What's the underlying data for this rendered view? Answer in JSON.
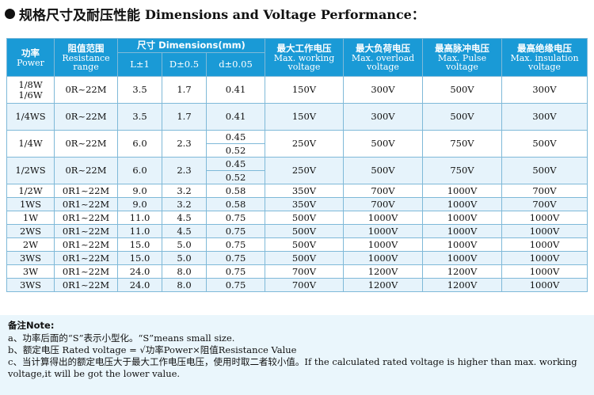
{
  "title": {
    "cn": "规格尺寸及耐压性能",
    "en": "Dimensions and Voltage Performance："
  },
  "table": {
    "headers": {
      "power": {
        "cn": "功率",
        "en": "Power"
      },
      "resistance": {
        "cn": "阻值范围",
        "en1": "Resistance",
        "en2": "range"
      },
      "dimensions": {
        "label": "尺寸 Dimensions(mm)",
        "l": "L±1",
        "d": "D±0.5",
        "dd": "d±0.05"
      },
      "max_working": {
        "cn": "最大工作电压",
        "en1": "Max. working",
        "en2": "voltage"
      },
      "max_overload": {
        "cn": "最大负荷电压",
        "en1": "Max. overload",
        "en2": "voltage"
      },
      "max_pulse": {
        "cn": "最高脉冲电压",
        "en1": "Max. Pulse",
        "en2": "voltage"
      },
      "max_insulation": {
        "cn": "最高绝缘电压",
        "en1": "Max. insulation",
        "en2": "voltage"
      }
    },
    "rows": [
      {
        "power1": "1/8W",
        "power2": "1/6W",
        "range": "0R~22M",
        "l": "3.5",
        "D": "1.7",
        "d": "0.41",
        "working": "150V",
        "overload": "300V",
        "pulse": "500V",
        "insulation": "300V"
      },
      {
        "power1": "1/4WS",
        "range": "0R~22M",
        "l": "3.5",
        "D": "1.7",
        "d": "0.41",
        "working": "150V",
        "overload": "300V",
        "pulse": "500V",
        "insulation": "300V"
      },
      {
        "power1": "1/4W",
        "range": "0R~22M",
        "l": "6.0",
        "D": "2.3",
        "d1": "0.45",
        "d2": "0.52",
        "working": "250V",
        "overload": "500V",
        "pulse": "750V",
        "insulation": "500V"
      },
      {
        "power1": "1/2WS",
        "range": "0R~22M",
        "l": "6.0",
        "D": "2.3",
        "d1": "0.45",
        "d2": "0.52",
        "working": "250V",
        "overload": "500V",
        "pulse": "750V",
        "insulation": "500V"
      },
      {
        "power1": "1/2W",
        "range": "0R1~22M",
        "l": "9.0",
        "D": "3.2",
        "d": "0.58",
        "working": "350V",
        "overload": "700V",
        "pulse": "1000V",
        "insulation": "700V"
      },
      {
        "power1": "1WS",
        "range": "0R1~22M",
        "l": "9.0",
        "D": "3.2",
        "d": "0.58",
        "working": "350V",
        "overload": "700V",
        "pulse": "1000V",
        "insulation": "700V"
      },
      {
        "power1": "1W",
        "range": "0R1~22M",
        "l": "11.0",
        "D": "4.5",
        "d": "0.75",
        "working": "500V",
        "overload": "1000V",
        "pulse": "1000V",
        "insulation": "1000V"
      },
      {
        "power1": "2WS",
        "range": "0R1~22M",
        "l": "11.0",
        "D": "4.5",
        "d": "0.75",
        "working": "500V",
        "overload": "1000V",
        "pulse": "1000V",
        "insulation": "1000V"
      },
      {
        "power1": "2W",
        "range": "0R1~22M",
        "l": "15.0",
        "D": "5.0",
        "d": "0.75",
        "working": "500V",
        "overload": "1000V",
        "pulse": "1000V",
        "insulation": "1000V"
      },
      {
        "power1": "3WS",
        "range": "0R1~22M",
        "l": "15.0",
        "D": "5.0",
        "d": "0.75",
        "working": "500V",
        "overload": "1000V",
        "pulse": "1000V",
        "insulation": "1000V"
      },
      {
        "power1": "3W",
        "range": "0R1~22M",
        "l": "24.0",
        "D": "8.0",
        "d": "0.75",
        "working": "700V",
        "overload": "1200V",
        "pulse": "1200V",
        "insulation": "1000V"
      },
      {
        "power1": "3WS",
        "range": "0R1~22M",
        "l": "24.0",
        "D": "8.0",
        "d": "0.75",
        "working": "700V",
        "overload": "1200V",
        "pulse": "1200V",
        "insulation": "1000V"
      }
    ]
  },
  "notes": {
    "heading": "备注Note:",
    "a": "a、功率后面的“S”表示小型化。“S”means small size.",
    "b": "b、额定电压 Rated voltage = √功率Power×阻值Resistance Value",
    "c1": "c、当计算得出的额定电压大于最大工作电压电压，使用时取二者较小值。If the calculated rated voltage is higher than max. working",
    "c2": "voltage,it will be got the lower value."
  }
}
